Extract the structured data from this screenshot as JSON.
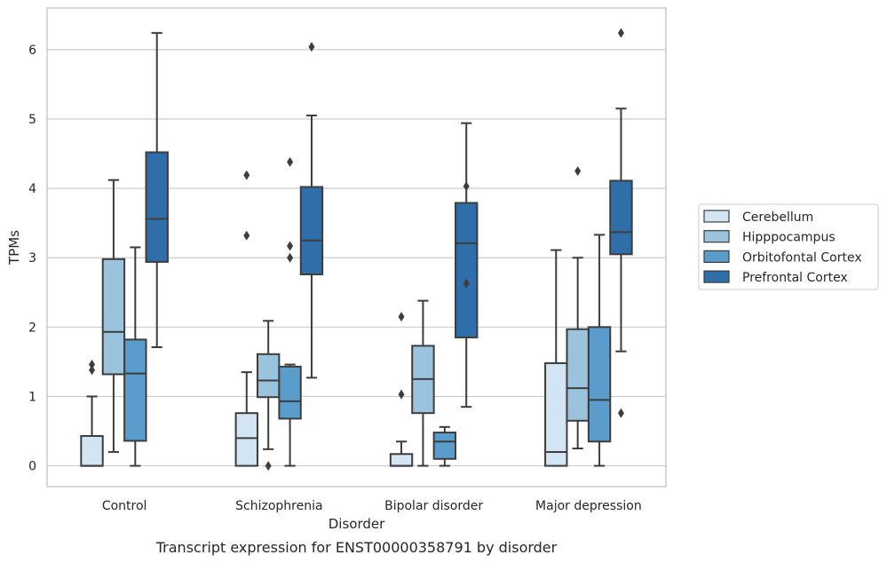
{
  "caption": "Transcript expression for ENST00000358791 by disorder",
  "chart_data": {
    "type": "box",
    "title": "",
    "xlabel": "Disorder",
    "ylabel": "TPMs",
    "ylim": [
      -0.3,
      6.6
    ],
    "yticks": [
      0,
      1,
      2,
      3,
      4,
      5,
      6
    ],
    "grid": true,
    "legend_position": "right",
    "categories": [
      "Control",
      "Schizophrenia",
      "Bipolar disorder",
      "Major depression"
    ],
    "series": [
      {
        "name": "Cerebellum",
        "color": "#d3e4f3",
        "boxes": [
          {
            "whislo": 0.0,
            "q1": 0.0,
            "med": 0.0,
            "q3": 0.43,
            "whishi": 1.0,
            "fliers": [
              1.38,
              1.46
            ]
          },
          {
            "whislo": 0.0,
            "q1": 0.0,
            "med": 0.4,
            "q3": 0.76,
            "whishi": 1.35,
            "fliers": [
              3.32,
              4.19
            ]
          },
          {
            "whislo": 0.0,
            "q1": 0.0,
            "med": 0.0,
            "q3": 0.17,
            "whishi": 0.35,
            "fliers": [
              1.03,
              2.15
            ]
          },
          {
            "whislo": 0.0,
            "q1": 0.0,
            "med": 0.2,
            "q3": 1.48,
            "whishi": 3.11,
            "fliers": []
          }
        ]
      },
      {
        "name": "Hipppocampus",
        "color": "#9ac3de",
        "boxes": [
          {
            "whislo": 0.2,
            "q1": 1.32,
            "med": 1.93,
            "q3": 2.98,
            "whishi": 4.12,
            "fliers": []
          },
          {
            "whislo": 0.24,
            "q1": 0.99,
            "med": 1.23,
            "q3": 1.61,
            "whishi": 2.09,
            "fliers": [
              0.0
            ]
          },
          {
            "whislo": 0.0,
            "q1": 0.76,
            "med": 1.25,
            "q3": 1.73,
            "whishi": 2.38,
            "fliers": []
          },
          {
            "whislo": 0.25,
            "q1": 0.65,
            "med": 1.12,
            "q3": 1.97,
            "whishi": 3.0,
            "fliers": [
              4.25
            ]
          }
        ]
      },
      {
        "name": "Orbitofontal Cortex",
        "color": "#5a9ccb",
        "boxes": [
          {
            "whislo": 0.0,
            "q1": 0.36,
            "med": 1.33,
            "q3": 1.82,
            "whishi": 3.15,
            "fliers": []
          },
          {
            "whislo": 0.0,
            "q1": 0.68,
            "med": 0.93,
            "q3": 1.43,
            "whishi": 1.46,
            "fliers": [
              3.0,
              3.17,
              4.38
            ]
          },
          {
            "whislo": 0.0,
            "q1": 0.1,
            "med": 0.35,
            "q3": 0.48,
            "whishi": 0.56,
            "fliers": []
          },
          {
            "whislo": 0.0,
            "q1": 0.35,
            "med": 0.95,
            "q3": 2.0,
            "whishi": 3.33,
            "fliers": []
          }
        ]
      },
      {
        "name": "Prefrontal Cortex",
        "color": "#2f6ea8",
        "boxes": [
          {
            "whislo": 1.71,
            "q1": 2.94,
            "med": 3.56,
            "q3": 4.52,
            "whishi": 6.24,
            "fliers": []
          },
          {
            "whislo": 1.27,
            "q1": 2.76,
            "med": 3.25,
            "q3": 4.02,
            "whishi": 5.05,
            "fliers": [
              6.04
            ]
          },
          {
            "whislo": 0.85,
            "q1": 1.85,
            "med": 3.21,
            "q3": 3.79,
            "whishi": 4.94,
            "fliers": [
              2.63,
              4.03
            ]
          },
          {
            "whislo": 1.65,
            "q1": 3.05,
            "med": 3.37,
            "q3": 4.11,
            "whishi": 5.15,
            "fliers": [
              0.76,
              6.24
            ]
          }
        ]
      }
    ]
  }
}
